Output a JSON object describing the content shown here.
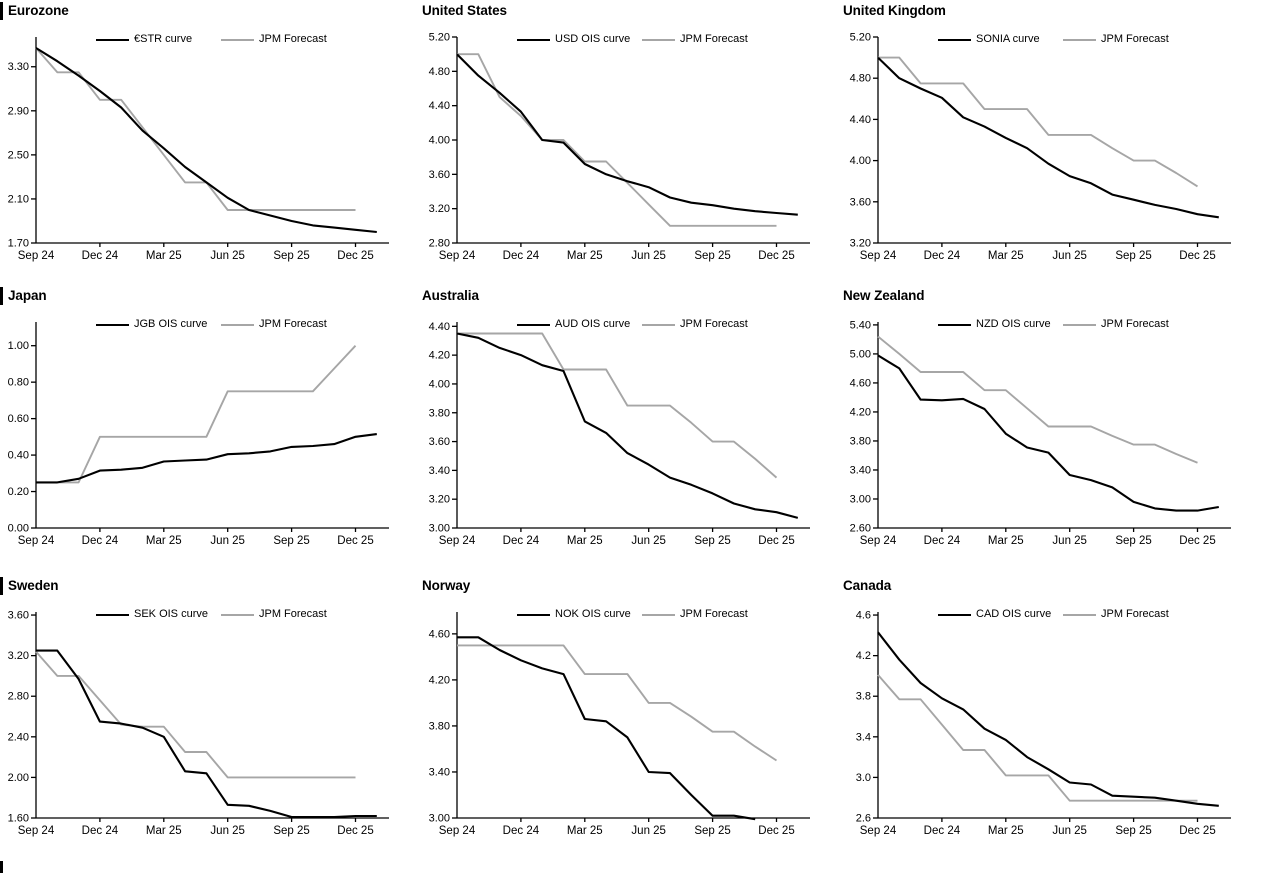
{
  "colors": {
    "ois_black": "#000000",
    "forecast_gray": "#a6a6a6"
  },
  "chart_data": [
    {
      "type": "line",
      "title": "Eurozone",
      "x_ticks": [
        "Sep 24",
        "Dec 24",
        "Mar 25",
        "Jun 25",
        "Sep 25",
        "Dec 25"
      ],
      "y_ticks": [
        "3.30",
        "2.90",
        "2.50",
        "2.10",
        "1.70"
      ],
      "ylim": [
        1.7,
        3.57
      ],
      "legend_position": "top-center",
      "grid": false,
      "series": [
        {
          "name": "€STR curve",
          "color": "ois_black",
          "values": [
            3.47,
            3.35,
            3.22,
            3.08,
            2.93,
            2.72,
            2.56,
            2.39,
            2.25,
            2.11,
            2.0,
            1.95,
            1.9,
            1.86,
            1.84,
            1.82,
            1.8
          ]
        },
        {
          "name": "JPM Forecast",
          "color": "forecast_gray",
          "values": [
            3.47,
            3.25,
            3.25,
            3.0,
            3.0,
            2.75,
            2.5,
            2.25,
            2.25,
            2.0,
            2.0,
            2.0,
            2.0,
            2.0,
            2.0,
            2.0
          ]
        }
      ]
    },
    {
      "type": "line",
      "title": "United States",
      "x_ticks": [
        "Sep 24",
        "Dec 24",
        "Mar 25",
        "Jun 25",
        "Sep 25",
        "Dec 25"
      ],
      "y_ticks": [
        "5.20",
        "4.80",
        "4.40",
        "4.00",
        "3.60",
        "3.20",
        "2.80"
      ],
      "ylim": [
        2.8,
        5.2
      ],
      "legend_position": "top-center",
      "grid": false,
      "series": [
        {
          "name": "USD OIS curve",
          "color": "ois_black",
          "values": [
            5.0,
            4.75,
            4.55,
            4.33,
            4.0,
            3.97,
            3.72,
            3.6,
            3.52,
            3.45,
            3.33,
            3.27,
            3.24,
            3.2,
            3.17,
            3.15,
            3.13
          ]
        },
        {
          "name": "JPM Forecast",
          "color": "forecast_gray",
          "values": [
            5.0,
            5.0,
            4.5,
            4.28,
            4.0,
            4.0,
            3.75,
            3.75,
            3.5,
            3.25,
            3.0,
            3.0,
            3.0,
            3.0,
            3.0,
            3.0
          ]
        }
      ]
    },
    {
      "type": "line",
      "title": "United Kingdom",
      "x_ticks": [
        "Sep 24",
        "Dec 24",
        "Mar 25",
        "Jun 25",
        "Sep 25",
        "Dec 25"
      ],
      "y_ticks": [
        "5.20",
        "4.80",
        "4.40",
        "4.00",
        "3.60",
        "3.20"
      ],
      "ylim": [
        3.2,
        5.2
      ],
      "legend_position": "top-center",
      "grid": false,
      "series": [
        {
          "name": "SONIA curve",
          "color": "ois_black",
          "values": [
            5.0,
            4.8,
            4.7,
            4.61,
            4.42,
            4.33,
            4.22,
            4.12,
            3.97,
            3.85,
            3.78,
            3.67,
            3.62,
            3.57,
            3.53,
            3.48,
            3.45
          ]
        },
        {
          "name": "JPM Forecast",
          "color": "forecast_gray",
          "values": [
            5.0,
            5.0,
            4.75,
            4.75,
            4.75,
            4.5,
            4.5,
            4.5,
            4.25,
            4.25,
            4.25,
            4.12,
            4.0,
            4.0,
            3.88,
            3.75
          ]
        }
      ]
    },
    {
      "type": "line",
      "title": "Japan",
      "x_ticks": [
        "Sep 24",
        "Dec 24",
        "Mar 25",
        "Jun 25",
        "Sep 25",
        "Dec 25"
      ],
      "y_ticks": [
        "1.00",
        "0.80",
        "0.60",
        "0.40",
        "0.20",
        "0.00"
      ],
      "ylim": [
        0.0,
        1.13
      ],
      "legend_position": "top-center",
      "grid": false,
      "series": [
        {
          "name": "JGB OIS curve",
          "color": "ois_black",
          "values": [
            0.25,
            0.25,
            0.27,
            0.315,
            0.32,
            0.33,
            0.365,
            0.37,
            0.375,
            0.405,
            0.41,
            0.42,
            0.445,
            0.45,
            0.46,
            0.5,
            0.515
          ]
        },
        {
          "name": "JPM Forecast",
          "color": "forecast_gray",
          "values": [
            0.25,
            0.25,
            0.25,
            0.5,
            0.5,
            0.5,
            0.5,
            0.5,
            0.5,
            0.75,
            0.75,
            0.75,
            0.75,
            0.75,
            0.875,
            1.0
          ]
        }
      ]
    },
    {
      "type": "line",
      "title": "Australia",
      "x_ticks": [
        "Sep 24",
        "Dec 24",
        "Mar 25",
        "Jun 25",
        "Sep 25",
        "Dec 25"
      ],
      "y_ticks": [
        "4.40",
        "4.20",
        "4.00",
        "3.80",
        "3.60",
        "3.40",
        "3.20",
        "3.00"
      ],
      "ylim": [
        3.0,
        4.43
      ],
      "legend_position": "top-center",
      "grid": false,
      "series": [
        {
          "name": "AUD OIS curve",
          "color": "ois_black",
          "values": [
            4.35,
            4.32,
            4.25,
            4.2,
            4.13,
            4.09,
            3.74,
            3.66,
            3.52,
            3.44,
            3.35,
            3.3,
            3.24,
            3.17,
            3.13,
            3.11,
            3.07
          ]
        },
        {
          "name": "JPM Forecast",
          "color": "forecast_gray",
          "values": [
            4.35,
            4.35,
            4.35,
            4.35,
            4.35,
            4.1,
            4.1,
            4.1,
            3.85,
            3.85,
            3.85,
            3.73,
            3.6,
            3.6,
            3.48,
            3.35
          ]
        }
      ]
    },
    {
      "type": "line",
      "title": "New Zealand",
      "x_ticks": [
        "Sep 24",
        "Dec 24",
        "Mar 25",
        "Jun 25",
        "Sep 25",
        "Dec 25"
      ],
      "y_ticks": [
        "5.40",
        "5.00",
        "4.60",
        "4.20",
        "3.80",
        "3.40",
        "3.00",
        "2.60"
      ],
      "ylim": [
        2.6,
        5.44
      ],
      "legend_position": "top-center",
      "grid": false,
      "series": [
        {
          "name": "NZD OIS curve",
          "color": "ois_black",
          "values": [
            4.98,
            4.8,
            4.37,
            4.36,
            4.38,
            4.24,
            3.9,
            3.71,
            3.64,
            3.33,
            3.26,
            3.16,
            2.96,
            2.87,
            2.84,
            2.84,
            2.89
          ]
        },
        {
          "name": "JPM Forecast",
          "color": "forecast_gray",
          "values": [
            5.24,
            5.0,
            4.75,
            4.75,
            4.75,
            4.5,
            4.5,
            4.25,
            4.0,
            4.0,
            4.0,
            3.87,
            3.75,
            3.75,
            3.62,
            3.5
          ]
        }
      ]
    },
    {
      "type": "line",
      "title": "Sweden",
      "x_ticks": [
        "Sep 24",
        "Dec 24",
        "Mar 25",
        "Jun 25",
        "Sep 25",
        "Dec 25"
      ],
      "y_ticks": [
        "3.60",
        "3.20",
        "2.80",
        "2.40",
        "2.00",
        "1.60"
      ],
      "ylim": [
        1.6,
        3.63
      ],
      "legend_position": "top-center",
      "grid": false,
      "series": [
        {
          "name": "SEK OIS curve",
          "color": "ois_black",
          "values": [
            3.25,
            3.25,
            2.97,
            2.55,
            2.53,
            2.49,
            2.4,
            2.06,
            2.04,
            1.73,
            1.72,
            1.67,
            1.61,
            1.61,
            1.61,
            1.62,
            1.62
          ]
        },
        {
          "name": "JPM Forecast",
          "color": "forecast_gray",
          "values": [
            3.24,
            3.0,
            3.0,
            2.76,
            2.52,
            2.5,
            2.5,
            2.25,
            2.25,
            2.0,
            2.0,
            2.0,
            2.0,
            2.0,
            2.0,
            2.0
          ]
        }
      ]
    },
    {
      "type": "line",
      "title": "Norway",
      "x_ticks": [
        "Sep 24",
        "Dec 24",
        "Mar 25",
        "Jun 25",
        "Sep 25",
        "Dec 25"
      ],
      "y_ticks": [
        "4.60",
        "4.20",
        "3.80",
        "3.40",
        "3.00"
      ],
      "ylim": [
        3.0,
        4.79
      ],
      "legend_position": "top-center",
      "grid": false,
      "series": [
        {
          "name": "NOK OIS curve",
          "color": "ois_black",
          "values": [
            4.57,
            4.57,
            4.46,
            4.37,
            4.3,
            4.25,
            3.86,
            3.84,
            3.7,
            3.4,
            3.39,
            3.2,
            3.02,
            3.02,
            2.99
          ]
        },
        {
          "name": "JPM Forecast",
          "color": "forecast_gray",
          "values": [
            4.5,
            4.5,
            4.5,
            4.5,
            4.5,
            4.5,
            4.25,
            4.25,
            4.25,
            4.0,
            4.0,
            3.88,
            3.75,
            3.75,
            3.62,
            3.5
          ]
        }
      ]
    },
    {
      "type": "line",
      "title": "Canada",
      "x_ticks": [
        "Sep 24",
        "Dec 24",
        "Mar 25",
        "Jun 25",
        "Sep 25",
        "Dec 25"
      ],
      "y_ticks": [
        "4.6",
        "4.2",
        "3.8",
        "3.4",
        "3.0",
        "2.6"
      ],
      "ylim": [
        2.6,
        4.63
      ],
      "legend_position": "top-center",
      "grid": false,
      "series": [
        {
          "name": "CAD OIS curve",
          "color": "ois_black",
          "values": [
            4.43,
            4.16,
            3.93,
            3.78,
            3.67,
            3.48,
            3.37,
            3.2,
            3.08,
            2.95,
            2.93,
            2.82,
            2.81,
            2.8,
            2.77,
            2.74,
            2.72
          ]
        },
        {
          "name": "JPM Forecast",
          "color": "forecast_gray",
          "values": [
            4.01,
            3.77,
            3.77,
            3.52,
            3.27,
            3.27,
            3.02,
            3.02,
            3.02,
            2.77,
            2.77,
            2.77,
            2.77,
            2.77,
            2.77,
            2.77
          ]
        }
      ]
    }
  ]
}
